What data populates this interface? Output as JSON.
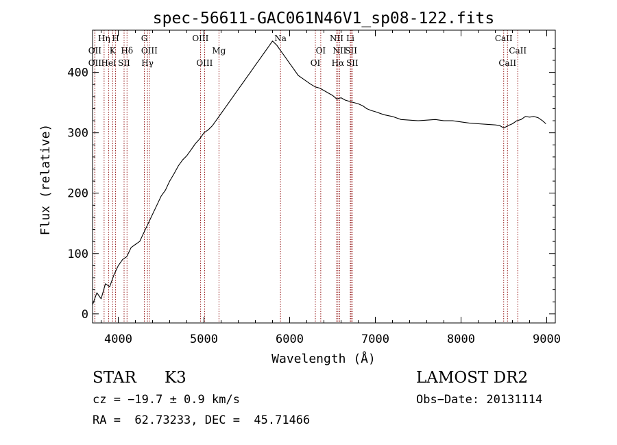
{
  "chart_data": {
    "type": "line",
    "title": "spec-56611-GAC061N46V1_sp08-122.fits",
    "xlabel": "Wavelength (Å)",
    "ylabel": "Flux (relative)",
    "xlim": [
      3700,
      9100
    ],
    "ylim": [
      -15,
      470
    ],
    "x_ticks": [
      4000,
      5000,
      6000,
      7000,
      8000,
      9000
    ],
    "y_ticks": [
      0,
      100,
      200,
      300,
      400
    ],
    "line_color": "#000000",
    "marker_color": "#8b0000",
    "series": [
      {
        "x": [
          3700,
          3750,
          3800,
          3850,
          3900,
          3950,
          4000,
          4050,
          4100,
          4150,
          4200,
          4250,
          4300,
          4350,
          4400,
          4450,
          4500,
          4550,
          4600,
          4650,
          4700,
          4750,
          4800,
          4850,
          4900,
          4950,
          5000,
          5050,
          5100,
          5150,
          5200,
          5250,
          5300,
          5350,
          5400,
          5450,
          5500,
          5550,
          5600,
          5650,
          5700,
          5750,
          5800,
          5850,
          5900,
          5950,
          6000,
          6050,
          6100,
          6150,
          6200,
          6250,
          6300,
          6350,
          6400,
          6450,
          6500,
          6550,
          6600,
          6650,
          6700,
          6750,
          6800,
          6850,
          6900,
          6950,
          7000,
          7100,
          7200,
          7300,
          7400,
          7500,
          7600,
          7700,
          7800,
          7900,
          8000,
          8100,
          8200,
          8300,
          8400,
          8450,
          8500,
          8550,
          8600,
          8650,
          8700,
          8750,
          8800,
          8850,
          8900,
          8950,
          8990
        ],
        "y": [
          15,
          35,
          25,
          50,
          45,
          65,
          80,
          90,
          95,
          110,
          115,
          120,
          135,
          150,
          165,
          180,
          195,
          205,
          220,
          232,
          245,
          255,
          262,
          272,
          282,
          290,
          300,
          305,
          312,
          322,
          332,
          342,
          352,
          362,
          372,
          382,
          392,
          402,
          412,
          422,
          432,
          442,
          452,
          445,
          435,
          425,
          415,
          405,
          395,
          390,
          385,
          380,
          376,
          374,
          370,
          366,
          362,
          356,
          358,
          354,
          352,
          350,
          348,
          345,
          340,
          337,
          335,
          330,
          327,
          322,
          321,
          320,
          321,
          322,
          320,
          320,
          318,
          316,
          315,
          314,
          313,
          312,
          308,
          312,
          315,
          320,
          322,
          327,
          326,
          327,
          325,
          320,
          315
        ]
      }
    ],
    "line_markers": [
      {
        "label": "OII",
        "x": 3727,
        "row": 2
      },
      {
        "label": "OII",
        "x": 3727,
        "row": 3
      },
      {
        "label": "Hη",
        "x": 3835,
        "row": 1
      },
      {
        "label": "K",
        "x": 3934,
        "row": 2
      },
      {
        "label": "H",
        "x": 3969,
        "row": 1
      },
      {
        "label": "HeI",
        "x": 3889,
        "row": 3
      },
      {
        "label": "Hδ",
        "x": 4102,
        "row": 2
      },
      {
        "label": "SII",
        "x": 4068,
        "row": 3
      },
      {
        "label": "G",
        "x": 4304,
        "row": 1
      },
      {
        "label": "OIII",
        "x": 4363,
        "row": 2
      },
      {
        "label": "Hγ",
        "x": 4341,
        "row": 3
      },
      {
        "label": "OIII",
        "x": 4959,
        "row": 1
      },
      {
        "label": "OIII",
        "x": 5007,
        "row": 3
      },
      {
        "label": "Mg",
        "x": 5175,
        "row": 2
      },
      {
        "label": "Na",
        "x": 5893,
        "row": 1
      },
      {
        "label": "OI",
        "x": 6300,
        "row": 3
      },
      {
        "label": "OI",
        "x": 6363,
        "row": 2
      },
      {
        "label": "NII",
        "x": 6548,
        "row": 1
      },
      {
        "label": "NII",
        "x": 6583,
        "row": 2
      },
      {
        "label": "Hα",
        "x": 6563,
        "row": 3
      },
      {
        "label": "Li",
        "x": 6708,
        "row": 1
      },
      {
        "label": "SII",
        "x": 6717,
        "row": 2
      },
      {
        "label": "SII",
        "x": 6731,
        "row": 3
      },
      {
        "label": "CaII",
        "x": 8498,
        "row": 1
      },
      {
        "label": "CaII",
        "x": 8542,
        "row": 3
      },
      {
        "label": "CaII",
        "x": 8662,
        "row": 2
      }
    ]
  },
  "info": {
    "object_class": "STAR",
    "subclass": "K3",
    "survey": "LAMOST DR2",
    "redshift": "cz = −19.7 ± 0.9 km/s",
    "obs_date": "Obs−Date: 20131114",
    "coords": "RA =  62.73233, DEC =  45.71466"
  }
}
